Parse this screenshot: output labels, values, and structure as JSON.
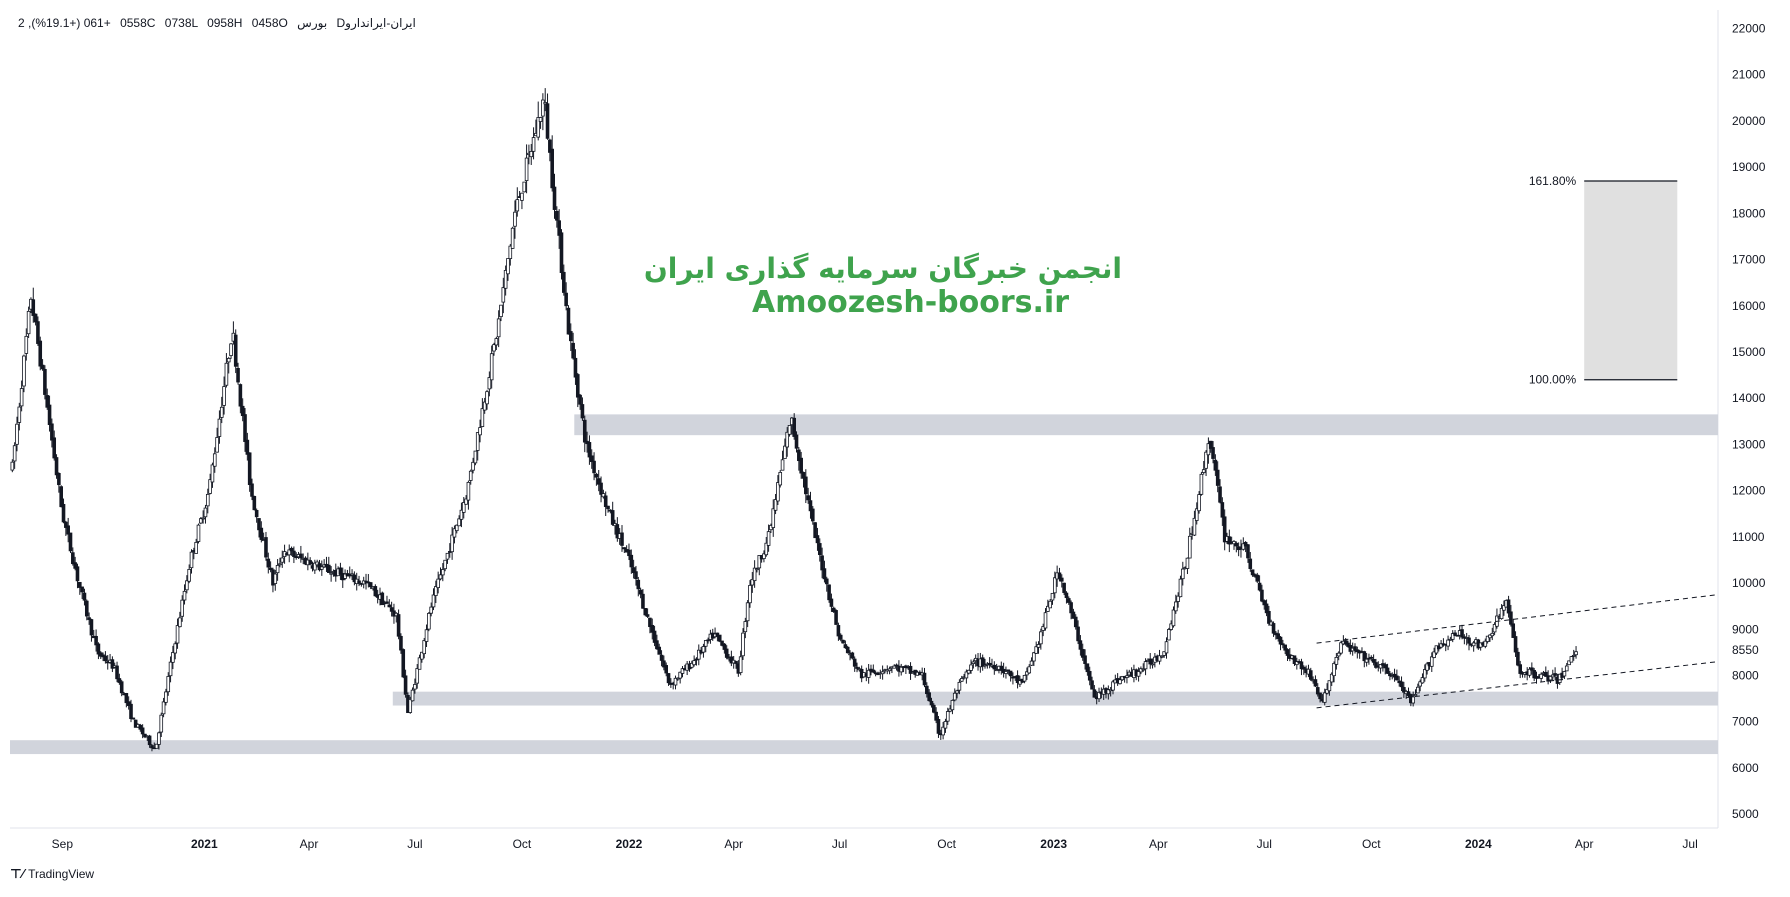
{
  "header": {
    "symbol": "2 ,ایران-ایراندارو‮D",
    "interval": "D",
    "exchange": "بورس",
    "open_label": "O8540",
    "high_label": "H8590",
    "low_label": "L8370",
    "close_label": "C8550",
    "change_label": "+160 (+1.91%)"
  },
  "watermark": {
    "line1": "انجمن خبرگان سرمایه گذاری ایران",
    "line2": "Amoozesh-boors.ir",
    "color": "#3fa34d"
  },
  "footer": {
    "brand": "TradingView"
  },
  "chart_data": {
    "type": "candlestick",
    "y_axis": {
      "side": "right",
      "ticks": [
        5000,
        6000,
        7000,
        8000,
        9000,
        10000,
        11000,
        12000,
        13000,
        14000,
        15000,
        16000,
        17000,
        18000,
        19000,
        20000,
        21000,
        22000
      ],
      "last_price": 8550,
      "ylim": [
        4700,
        22400
      ]
    },
    "x_axis": {
      "ticks": [
        {
          "label": "Sep",
          "date": "2020-09-01"
        },
        {
          "label": "2021",
          "date": "2021-01-01"
        },
        {
          "label": "Apr",
          "date": "2021-04-01"
        },
        {
          "label": "Jul",
          "date": "2021-07-01"
        },
        {
          "label": "Oct",
          "date": "2021-10-01"
        },
        {
          "label": "2022",
          "date": "2022-01-01"
        },
        {
          "label": "Apr",
          "date": "2022-04-01"
        },
        {
          "label": "Jul",
          "date": "2022-07-01"
        },
        {
          "label": "Oct",
          "date": "2022-10-01"
        },
        {
          "label": "2023",
          "date": "2023-01-01"
        },
        {
          "label": "Apr",
          "date": "2023-04-01"
        },
        {
          "label": "Jul",
          "date": "2023-07-01"
        },
        {
          "label": "Oct",
          "date": "2023-10-01"
        },
        {
          "label": "2024",
          "date": "2024-01-01"
        },
        {
          "label": "Apr",
          "date": "2024-04-01"
        },
        {
          "label": "Jul",
          "date": "2024-07-01"
        }
      ],
      "range": [
        "2020-07-18",
        "2024-07-25"
      ]
    },
    "price_path": [
      {
        "date": "2020-07-20",
        "price": 12500
      },
      {
        "date": "2020-08-05",
        "price": 16200
      },
      {
        "date": "2020-08-15",
        "price": 14500
      },
      {
        "date": "2020-09-01",
        "price": 11500
      },
      {
        "date": "2020-09-15",
        "price": 10000
      },
      {
        "date": "2020-10-01",
        "price": 8500
      },
      {
        "date": "2020-10-15",
        "price": 8200
      },
      {
        "date": "2020-11-01",
        "price": 7000
      },
      {
        "date": "2020-11-20",
        "price": 6400
      },
      {
        "date": "2020-12-05",
        "price": 8500
      },
      {
        "date": "2020-12-20",
        "price": 10500
      },
      {
        "date": "2021-01-05",
        "price": 12000
      },
      {
        "date": "2021-01-25",
        "price": 15500
      },
      {
        "date": "2021-02-10",
        "price": 12000
      },
      {
        "date": "2021-03-01",
        "price": 10000
      },
      {
        "date": "2021-03-10",
        "price": 10700
      },
      {
        "date": "2021-04-15",
        "price": 10300
      },
      {
        "date": "2021-05-20",
        "price": 10000
      },
      {
        "date": "2021-06-15",
        "price": 9300
      },
      {
        "date": "2021-06-25",
        "price": 7200
      },
      {
        "date": "2021-07-15",
        "price": 9500
      },
      {
        "date": "2021-08-15",
        "price": 12000
      },
      {
        "date": "2021-09-10",
        "price": 15500
      },
      {
        "date": "2021-09-25",
        "price": 18000
      },
      {
        "date": "2021-10-10",
        "price": 19500
      },
      {
        "date": "2021-10-20",
        "price": 20500
      },
      {
        "date": "2021-10-28",
        "price": 18500
      },
      {
        "date": "2021-11-10",
        "price": 15500
      },
      {
        "date": "2021-11-25",
        "price": 13000
      },
      {
        "date": "2021-12-15",
        "price": 11500
      },
      {
        "date": "2022-01-01",
        "price": 10500
      },
      {
        "date": "2022-01-20",
        "price": 9000
      },
      {
        "date": "2022-02-05",
        "price": 7800
      },
      {
        "date": "2022-02-25",
        "price": 8300
      },
      {
        "date": "2022-03-15",
        "price": 8900
      },
      {
        "date": "2022-04-05",
        "price": 8100
      },
      {
        "date": "2022-04-15",
        "price": 10000
      },
      {
        "date": "2022-05-01",
        "price": 11000
      },
      {
        "date": "2022-05-20",
        "price": 13600
      },
      {
        "date": "2022-06-10",
        "price": 11000
      },
      {
        "date": "2022-07-01",
        "price": 8800
      },
      {
        "date": "2022-07-20",
        "price": 8000
      },
      {
        "date": "2022-08-15",
        "price": 8200
      },
      {
        "date": "2022-09-10",
        "price": 8000
      },
      {
        "date": "2022-09-25",
        "price": 6700
      },
      {
        "date": "2022-10-10",
        "price": 7700
      },
      {
        "date": "2022-10-25",
        "price": 8300
      },
      {
        "date": "2022-11-15",
        "price": 8200
      },
      {
        "date": "2022-12-05",
        "price": 7800
      },
      {
        "date": "2022-12-20",
        "price": 8800
      },
      {
        "date": "2023-01-05",
        "price": 10300
      },
      {
        "date": "2023-01-20",
        "price": 9000
      },
      {
        "date": "2023-02-05",
        "price": 7500
      },
      {
        "date": "2023-02-25",
        "price": 7900
      },
      {
        "date": "2023-03-15",
        "price": 8100
      },
      {
        "date": "2023-04-05",
        "price": 8500
      },
      {
        "date": "2023-04-25",
        "price": 10500
      },
      {
        "date": "2023-05-15",
        "price": 13200
      },
      {
        "date": "2023-05-28",
        "price": 11000
      },
      {
        "date": "2023-06-15",
        "price": 10700
      },
      {
        "date": "2023-07-05",
        "price": 9200
      },
      {
        "date": "2023-07-20",
        "price": 8500
      },
      {
        "date": "2023-08-10",
        "price": 8000
      },
      {
        "date": "2023-08-20",
        "price": 7400
      },
      {
        "date": "2023-09-05",
        "price": 8700
      },
      {
        "date": "2023-10-01",
        "price": 8300
      },
      {
        "date": "2023-10-20",
        "price": 8000
      },
      {
        "date": "2023-11-05",
        "price": 7400
      },
      {
        "date": "2023-11-25",
        "price": 8600
      },
      {
        "date": "2023-12-15",
        "price": 8900
      },
      {
        "date": "2024-01-05",
        "price": 8600
      },
      {
        "date": "2024-01-25",
        "price": 9600
      },
      {
        "date": "2024-02-05",
        "price": 8100
      },
      {
        "date": "2024-02-25",
        "price": 8000
      },
      {
        "date": "2024-03-10",
        "price": 7900
      },
      {
        "date": "2024-03-25",
        "price": 8550
      }
    ],
    "support_resistance_zones": [
      {
        "start": "2021-11-15",
        "end": "2024-07-25",
        "low": 13200,
        "high": 13650
      },
      {
        "start": "2021-06-12",
        "end": "2024-07-25",
        "low": 7350,
        "high": 7650
      },
      {
        "start": "2020-07-18",
        "end": "2024-07-25",
        "low": 6300,
        "high": 6600
      }
    ],
    "fibonacci_box": {
      "start": "2024-04-01",
      "end": "2024-06-20",
      "levels": [
        {
          "label": "161.80%",
          "price": 18700
        },
        {
          "label": "100.00%",
          "price": 14400
        }
      ]
    },
    "channel_lines": [
      {
        "start_date": "2023-08-15",
        "start_price": 8700,
        "end_date": "2024-07-25",
        "end_price": 9750
      },
      {
        "start_date": "2023-08-15",
        "start_price": 7300,
        "end_date": "2024-07-25",
        "end_price": 8300
      }
    ],
    "colors": {
      "candle": "#131722",
      "zone": "#d1d4dc",
      "fib_fill": "#e0e0e0",
      "axis_text": "#131722"
    }
  }
}
